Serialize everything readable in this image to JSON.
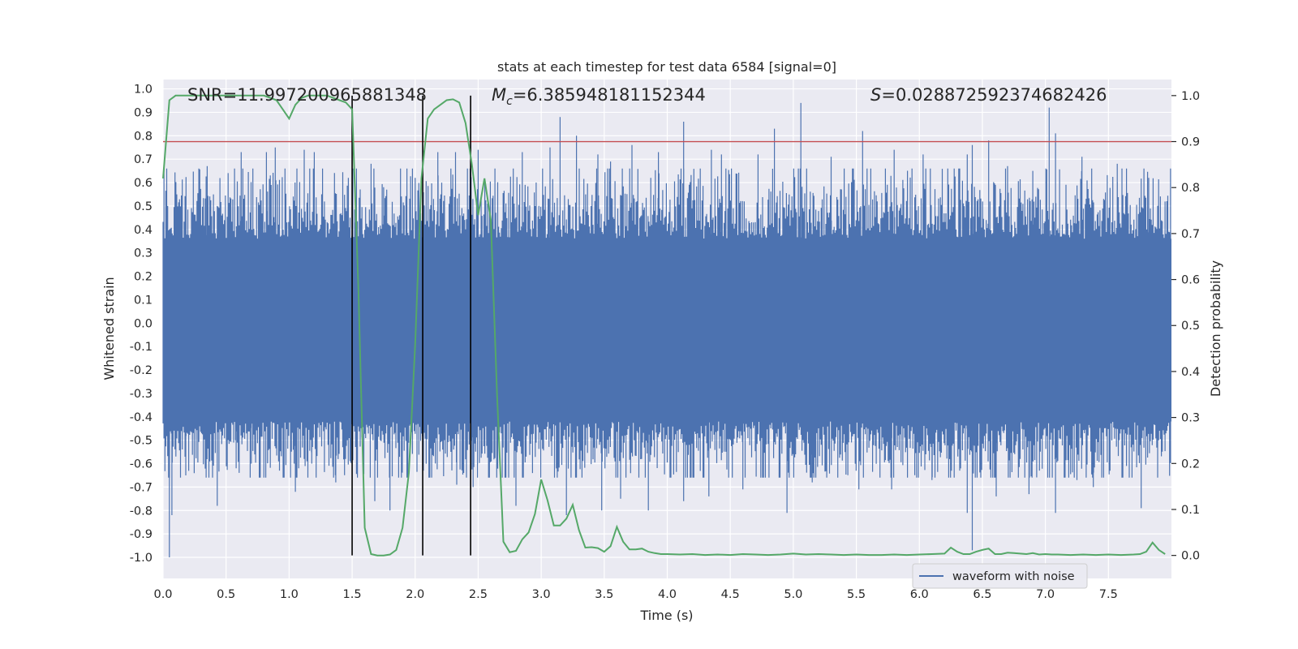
{
  "chart_data": {
    "type": "line",
    "title": "stats at each timestep for test data 6584 [signal=0]",
    "xlabel": "Time (s)",
    "ylabel": "Whitened strain",
    "y2label": "Detection probability",
    "xlim": [
      0,
      8
    ],
    "ylim": [
      -1.09,
      1.04
    ],
    "y2lim": [
      -0.05,
      1.035
    ],
    "grid": true,
    "xticks": [
      0.0,
      0.5,
      1.0,
      1.5,
      2.0,
      2.5,
      3.0,
      3.5,
      4.0,
      4.5,
      5.0,
      5.5,
      6.0,
      6.5,
      7.0,
      7.5
    ],
    "xtick_labels": [
      "0.0",
      "0.5",
      "1.0",
      "1.5",
      "2.0",
      "2.5",
      "3.0",
      "3.5",
      "4.0",
      "4.5",
      "5.0",
      "5.5",
      "6.0",
      "6.5",
      "7.0",
      "7.5"
    ],
    "yticks": [
      1.0,
      0.9,
      0.8,
      0.7,
      0.6,
      0.5,
      0.4,
      0.3,
      0.2,
      0.1,
      0.0,
      -0.1,
      -0.2,
      -0.3,
      -0.4,
      -0.5,
      -0.6,
      -0.7,
      -0.8,
      -0.9,
      -1.0
    ],
    "ytick_labels": [
      "1.0",
      "0.9",
      "0.8",
      "0.7",
      "0.6",
      "0.5",
      "0.4",
      "0.3",
      "0.2",
      "0.1",
      "0.0",
      "-0.1",
      "-0.2",
      "-0.3",
      "-0.4",
      "-0.5",
      "-0.6",
      "-0.7",
      "-0.8",
      "-0.9",
      "-1.0"
    ],
    "y2ticks": [
      1.0,
      0.9,
      0.8,
      0.7,
      0.6,
      0.5,
      0.4,
      0.3,
      0.2,
      0.1,
      0.0
    ],
    "y2tick_labels": [
      "1.0",
      "0.9",
      "0.8",
      "0.7",
      "0.6",
      "0.5",
      "0.4",
      "0.3",
      "0.2",
      "0.1",
      "0.0"
    ],
    "annotations": {
      "snr": "SNR=11.997200965881348",
      "mc_symbol": "M",
      "mc_sub": "c",
      "mc_value": "=6.385948181152344",
      "s_symbol": "S",
      "s_value": "=0.028872592374682426"
    },
    "vlines_x": [
      1.5,
      2.06,
      2.44
    ],
    "threshold": {
      "axis": "right",
      "y": 0.9,
      "color": "#c44e52"
    },
    "waveform": {
      "name": "waveform with noise",
      "color": "#4c72b0",
      "duration_s": 8.0,
      "band_low": -0.42,
      "band_high": 0.36,
      "noise_sigma": 0.19,
      "spikes_up": [
        [
          0.05,
          0.4
        ],
        [
          0.35,
          0.67
        ],
        [
          0.43,
          0.5
        ],
        [
          0.62,
          0.73
        ],
        [
          0.82,
          0.73
        ],
        [
          0.89,
          0.75
        ],
        [
          1.12,
          0.74
        ],
        [
          1.2,
          0.73
        ],
        [
          1.47,
          0.62
        ],
        [
          1.65,
          0.68
        ],
        [
          1.75,
          0.58
        ],
        [
          2.0,
          0.62
        ],
        [
          2.18,
          0.73
        ],
        [
          2.32,
          0.73
        ],
        [
          2.5,
          0.74
        ],
        [
          2.85,
          0.73
        ],
        [
          2.96,
          0.6
        ],
        [
          3.07,
          0.75
        ],
        [
          3.15,
          0.88
        ],
        [
          3.28,
          0.8
        ],
        [
          3.45,
          0.72
        ],
        [
          3.55,
          0.69
        ],
        [
          3.72,
          0.76
        ],
        [
          3.93,
          0.73
        ],
        [
          4.13,
          0.86
        ],
        [
          4.35,
          0.74
        ],
        [
          4.43,
          0.72
        ],
        [
          4.72,
          0.72
        ],
        [
          4.85,
          0.83
        ],
        [
          5.06,
          0.94
        ],
        [
          5.3,
          0.71
        ],
        [
          5.55,
          0.82
        ],
        [
          5.8,
          0.74
        ],
        [
          6.03,
          0.72
        ],
        [
          6.38,
          0.72
        ],
        [
          6.42,
          0.76
        ],
        [
          6.55,
          0.78
        ],
        [
          6.7,
          0.67
        ],
        [
          6.9,
          0.65
        ],
        [
          7.03,
          0.92
        ],
        [
          7.08,
          0.81
        ],
        [
          7.29,
          0.71
        ],
        [
          7.57,
          0.68
        ],
        [
          7.82,
          0.62
        ]
      ],
      "spikes_down": [
        [
          0.05,
          -1.0
        ],
        [
          0.07,
          -0.82
        ],
        [
          0.18,
          -0.65
        ],
        [
          0.43,
          -0.78
        ],
        [
          0.58,
          -0.62
        ],
        [
          0.7,
          -0.6
        ],
        [
          1.05,
          -0.72
        ],
        [
          1.18,
          -0.6
        ],
        [
          1.37,
          -0.68
        ],
        [
          1.68,
          -0.76
        ],
        [
          1.8,
          -0.8
        ],
        [
          2.33,
          -0.69
        ],
        [
          2.46,
          -0.7
        ],
        [
          2.8,
          -0.78
        ],
        [
          3.2,
          -0.82
        ],
        [
          3.48,
          -0.8
        ],
        [
          3.63,
          -0.75
        ],
        [
          3.85,
          -0.8
        ],
        [
          4.13,
          -0.76
        ],
        [
          4.33,
          -0.74
        ],
        [
          4.6,
          -0.71
        ],
        [
          4.95,
          -0.81
        ],
        [
          5.15,
          -0.68
        ],
        [
          5.52,
          -0.71
        ],
        [
          5.78,
          -0.71
        ],
        [
          6.1,
          -0.67
        ],
        [
          6.38,
          -0.81
        ],
        [
          6.42,
          -0.97
        ],
        [
          6.61,
          -0.74
        ],
        [
          6.87,
          -0.73
        ],
        [
          7.08,
          -0.81
        ],
        [
          7.25,
          -0.67
        ],
        [
          7.38,
          -0.7
        ],
        [
          7.76,
          -0.79
        ]
      ]
    },
    "detection_probability": {
      "name": "detection probability",
      "color": "#55a868",
      "x": [
        0.0,
        0.05,
        0.1,
        0.15,
        0.2,
        0.3,
        0.4,
        0.5,
        0.6,
        0.7,
        0.8,
        0.9,
        0.95,
        1.0,
        1.05,
        1.1,
        1.15,
        1.2,
        1.3,
        1.4,
        1.45,
        1.5,
        1.55,
        1.6,
        1.65,
        1.7,
        1.75,
        1.8,
        1.85,
        1.9,
        1.95,
        2.0,
        2.05,
        2.1,
        2.15,
        2.2,
        2.25,
        2.3,
        2.35,
        2.4,
        2.45,
        2.5,
        2.55,
        2.6,
        2.65,
        2.7,
        2.75,
        2.8,
        2.85,
        2.9,
        2.95,
        3.0,
        3.05,
        3.1,
        3.15,
        3.2,
        3.25,
        3.3,
        3.35,
        3.4,
        3.45,
        3.5,
        3.55,
        3.6,
        3.65,
        3.7,
        3.75,
        3.8,
        3.85,
        3.9,
        3.95,
        4.0,
        4.1,
        4.2,
        4.3,
        4.4,
        4.5,
        4.6,
        4.7,
        4.8,
        4.9,
        5.0,
        5.1,
        5.2,
        5.3,
        5.4,
        5.5,
        5.6,
        5.7,
        5.8,
        5.9,
        6.0,
        6.1,
        6.2,
        6.25,
        6.3,
        6.35,
        6.4,
        6.45,
        6.5,
        6.55,
        6.6,
        6.65,
        6.7,
        6.75,
        6.8,
        6.85,
        6.9,
        6.95,
        7.0,
        7.05,
        7.1,
        7.2,
        7.3,
        7.4,
        7.5,
        7.6,
        7.7,
        7.75,
        7.8,
        7.85,
        7.9,
        7.95
      ],
      "y": [
        0.82,
        0.99,
        1.0,
        1.0,
        1.0,
        1.0,
        1.0,
        1.0,
        1.0,
        1.0,
        1.0,
        0.99,
        0.97,
        0.95,
        0.98,
        0.995,
        1.0,
        1.0,
        1.0,
        0.99,
        0.985,
        0.97,
        0.58,
        0.06,
        0.003,
        0.0,
        0.0,
        0.002,
        0.012,
        0.06,
        0.18,
        0.46,
        0.82,
        0.95,
        0.97,
        0.98,
        0.99,
        0.992,
        0.985,
        0.94,
        0.85,
        0.74,
        0.82,
        0.73,
        0.35,
        0.03,
        0.007,
        0.01,
        0.035,
        0.05,
        0.09,
        0.165,
        0.12,
        0.065,
        0.065,
        0.08,
        0.11,
        0.055,
        0.017,
        0.018,
        0.016,
        0.008,
        0.02,
        0.062,
        0.03,
        0.013,
        0.013,
        0.015,
        0.008,
        0.005,
        0.003,
        0.003,
        0.002,
        0.003,
        0.001,
        0.002,
        0.001,
        0.003,
        0.002,
        0.001,
        0.002,
        0.004,
        0.002,
        0.003,
        0.002,
        0.001,
        0.002,
        0.001,
        0.001,
        0.002,
        0.001,
        0.002,
        0.003,
        0.004,
        0.017,
        0.008,
        0.003,
        0.003,
        0.008,
        0.012,
        0.015,
        0.003,
        0.003,
        0.006,
        0.005,
        0.004,
        0.003,
        0.005,
        0.002,
        0.003,
        0.002,
        0.002,
        0.001,
        0.002,
        0.001,
        0.002,
        0.001,
        0.002,
        0.003,
        0.008,
        0.028,
        0.012,
        0.003
      ]
    },
    "legend": {
      "position": "lower-right",
      "entries": [
        "waveform with noise"
      ]
    }
  }
}
